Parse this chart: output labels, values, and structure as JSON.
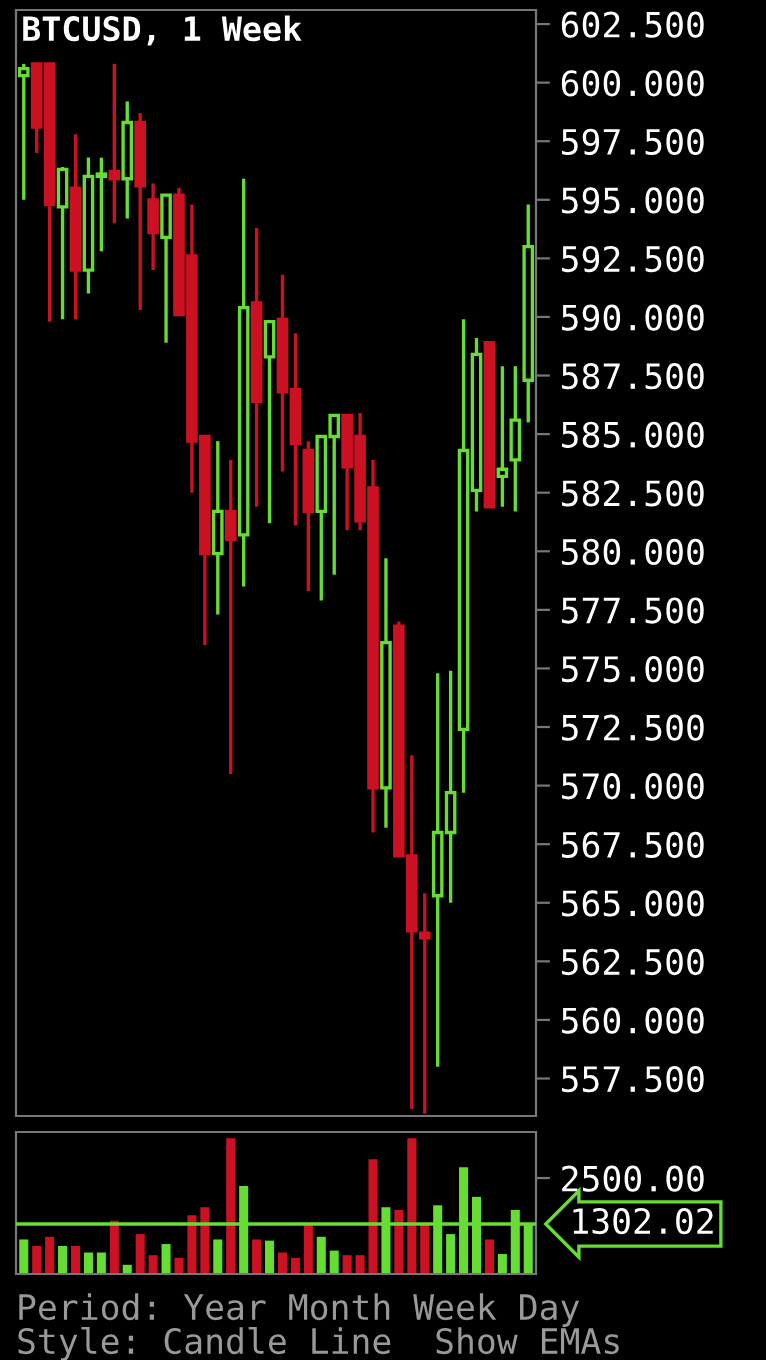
{
  "chart_data": [
    {
      "type": "candlestick",
      "title": "BTCUSD, 1 Week",
      "tick_labels": "y",
      "categories": [
        null,
        null,
        null,
        null,
        null,
        null,
        null,
        null,
        null,
        null,
        null,
        null,
        null,
        null,
        null,
        null,
        null,
        null,
        null,
        null,
        null,
        null,
        null,
        null,
        null,
        null,
        null,
        null,
        null,
        null,
        null,
        null,
        null,
        null,
        null,
        null,
        null,
        null,
        null,
        null
      ],
      "ohlc": [
        [
          600.3,
          600.8,
          595.0,
          600.6
        ],
        [
          600.8,
          600.8,
          597.0,
          598.1
        ],
        [
          600.8,
          600.8,
          589.8,
          594.8
        ],
        [
          594.7,
          596.4,
          589.9,
          596.3
        ],
        [
          595.5,
          597.8,
          589.9,
          592.0
        ],
        [
          592.0,
          596.8,
          591.0,
          596.0
        ],
        [
          596.0,
          596.8,
          592.8,
          596.1
        ],
        [
          596.2,
          600.8,
          594.0,
          595.9
        ],
        [
          595.9,
          599.2,
          594.2,
          598.3
        ],
        [
          598.3,
          598.7,
          590.3,
          595.6
        ],
        [
          595.0,
          595.7,
          592.0,
          593.6
        ],
        [
          593.4,
          595.2,
          588.9,
          595.2
        ],
        [
          595.2,
          595.5,
          590.1,
          590.1
        ],
        [
          592.6,
          594.8,
          582.5,
          584.7
        ],
        [
          584.9,
          584.9,
          576.0,
          579.9
        ],
        [
          579.9,
          584.7,
          577.3,
          581.7
        ],
        [
          581.7,
          583.9,
          570.5,
          580.5
        ],
        [
          580.7,
          595.9,
          578.5,
          590.4
        ],
        [
          590.6,
          593.8,
          581.9,
          586.4
        ],
        [
          588.3,
          589.8,
          581.2,
          589.8
        ],
        [
          589.9,
          591.8,
          583.4,
          586.8
        ],
        [
          586.9,
          589.3,
          581.1,
          584.6
        ],
        [
          584.3,
          584.7,
          578.3,
          581.7
        ],
        [
          581.7,
          584.9,
          577.9,
          584.9
        ],
        [
          584.9,
          585.8,
          579.0,
          585.8
        ],
        [
          585.8,
          585.8,
          580.9,
          583.6
        ],
        [
          584.9,
          585.9,
          580.9,
          581.3
        ],
        [
          582.7,
          583.9,
          568.0,
          569.9
        ],
        [
          569.9,
          579.7,
          568.2,
          576.1
        ],
        [
          576.8,
          577.0,
          567.0,
          567.0
        ],
        [
          567.0,
          571.3,
          556.2,
          563.8
        ],
        [
          563.7,
          565.4,
          556.0,
          563.5
        ],
        [
          565.3,
          574.8,
          558.0,
          568.0
        ],
        [
          568.0,
          574.9,
          565.0,
          569.7
        ],
        [
          572.4,
          589.9,
          569.7,
          584.3
        ],
        [
          582.6,
          589.1,
          581.7,
          588.4
        ],
        [
          588.9,
          588.9,
          581.9,
          581.9
        ],
        [
          583.2,
          587.9,
          581.9,
          583.5
        ],
        [
          583.9,
          587.9,
          581.7,
          585.6
        ],
        [
          587.3,
          594.8,
          585.5,
          593.0
        ]
      ],
      "colors": [
        "#66dd33",
        "#cc1122",
        "#cc1122",
        "#66dd33",
        "#cc1122",
        "#66dd33",
        "#66dd33",
        "#cc1122",
        "#66dd33",
        "#cc1122",
        "#cc1122",
        "#66dd33",
        "#cc1122",
        "#cc1122",
        "#cc1122",
        "#66dd33",
        "#cc1122",
        "#66dd33",
        "#cc1122",
        "#66dd33",
        "#cc1122",
        "#cc1122",
        "#cc1122",
        "#66dd33",
        "#66dd33",
        "#cc1122",
        "#cc1122",
        "#cc1122",
        "#66dd33",
        "#cc1122",
        "#cc1122",
        "#cc1122",
        "#66dd33",
        "#66dd33",
        "#66dd33",
        "#66dd33",
        "#cc1122",
        "#66dd33",
        "#66dd33",
        "#66dd33"
      ],
      "ylim": [
        555.9,
        603.1
      ],
      "yticks": [
        {
          "value": 557.5,
          "label": "557.500"
        },
        {
          "value": 560,
          "label": "560.000"
        },
        {
          "value": 562.5,
          "label": "562.500"
        },
        {
          "value": 565,
          "label": "565.000"
        },
        {
          "value": 567.5,
          "label": "567.500"
        },
        {
          "value": 570,
          "label": "570.000"
        },
        {
          "value": 572.5,
          "label": "572.500"
        },
        {
          "value": 575,
          "label": "575.000"
        },
        {
          "value": 577.5,
          "label": "577.500"
        },
        {
          "value": 580,
          "label": "580.000"
        },
        {
          "value": 582.5,
          "label": "582.500"
        },
        {
          "value": 585,
          "label": "585.000"
        },
        {
          "value": 587.5,
          "label": "587.500"
        },
        {
          "value": 590,
          "label": "590.000"
        },
        {
          "value": 592.5,
          "label": "592.500"
        },
        {
          "value": 595,
          "label": "595.000"
        },
        {
          "value": 597.5,
          "label": "597.500"
        },
        {
          "value": 600,
          "label": "600.000"
        },
        {
          "value": 602.5,
          "label": "602.500"
        }
      ]
    },
    {
      "type": "bar",
      "tick_labels": "y",
      "categories": [
        null,
        null,
        null,
        null,
        null,
        null,
        null,
        null,
        null,
        null,
        null,
        null,
        null,
        null,
        null,
        null,
        null,
        null,
        null,
        null,
        null,
        null,
        null,
        null,
        null,
        null,
        null,
        null,
        null,
        null,
        null,
        null,
        null,
        null,
        null,
        null,
        null,
        null,
        null,
        null
      ],
      "values": [
        900,
        730,
        970,
        730,
        730,
        560,
        560,
        1390,
        240,
        1040,
        490,
        780,
        420,
        1530,
        1740,
        900,
        3540,
        2290,
        900,
        870,
        560,
        420,
        1300,
        970,
        610,
        490,
        490,
        2990,
        1740,
        1670,
        3540,
        1300,
        1790,
        1040,
        2780,
        2010,
        900,
        520,
        1670,
        1300
      ],
      "colors": [
        "#66dd33",
        "#cc1122",
        "#cc1122",
        "#66dd33",
        "#cc1122",
        "#66dd33",
        "#66dd33",
        "#cc1122",
        "#66dd33",
        "#cc1122",
        "#cc1122",
        "#66dd33",
        "#cc1122",
        "#cc1122",
        "#cc1122",
        "#66dd33",
        "#cc1122",
        "#66dd33",
        "#cc1122",
        "#66dd33",
        "#cc1122",
        "#cc1122",
        "#cc1122",
        "#66dd33",
        "#66dd33",
        "#cc1122",
        "#cc1122",
        "#cc1122",
        "#66dd33",
        "#cc1122",
        "#cc1122",
        "#cc1122",
        "#66dd33",
        "#66dd33",
        "#66dd33",
        "#66dd33",
        "#cc1122",
        "#66dd33",
        "#66dd33",
        "#66dd33"
      ],
      "ylim": [
        0,
        3700
      ],
      "yticks": [
        {
          "value": 2500,
          "label": "2500.00"
        }
      ],
      "ref_lines": [
        {
          "axis": "y",
          "value": 1302.02,
          "label": "1302.02",
          "color": "#66dd33"
        }
      ],
      "annotations": [
        "Period: Year Month Week Day",
        "Style: Candle Line  Show EMAs"
      ]
    }
  ]
}
